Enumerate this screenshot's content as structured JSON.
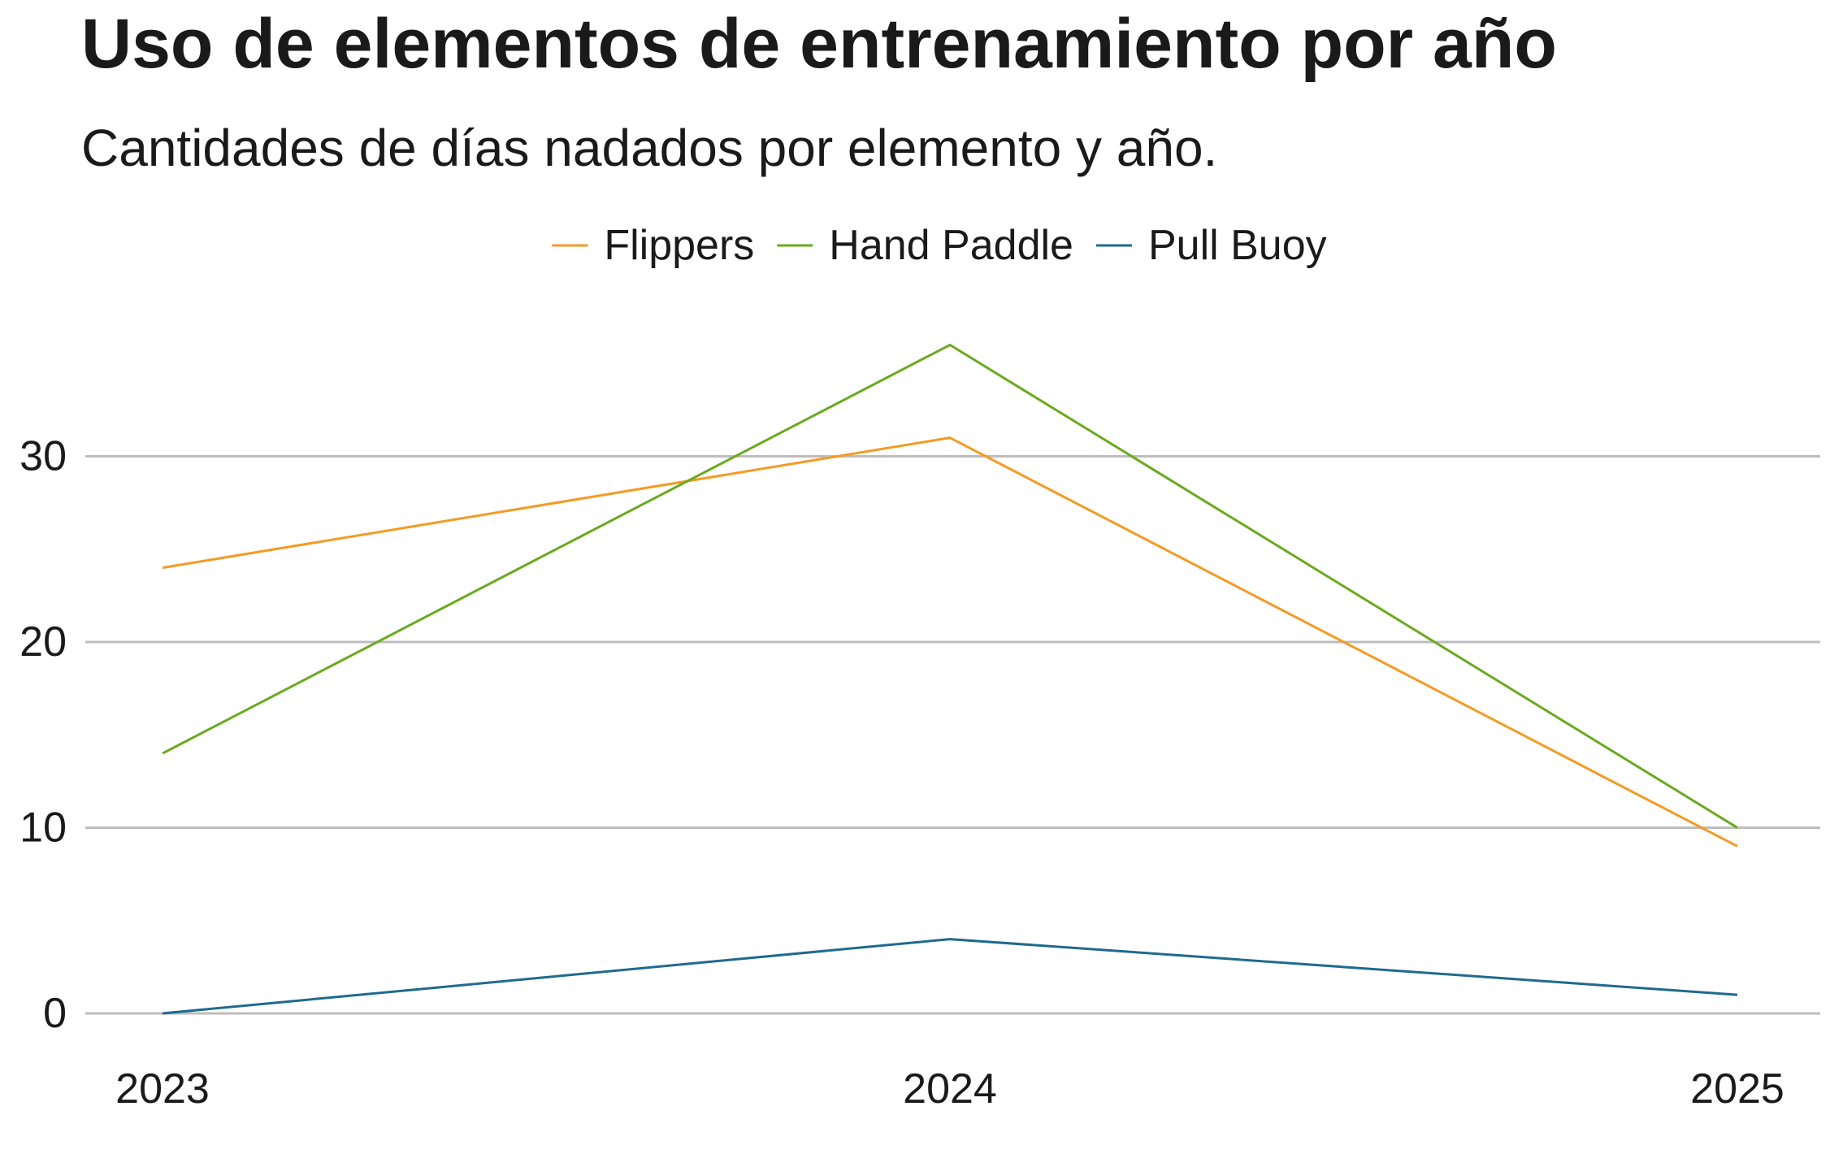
{
  "chart_data": {
    "type": "line",
    "title": "Uso de elementos de entrenamiento por año",
    "subtitle": "Cantidades de días nadados por elemento y año.",
    "xlabel": "",
    "ylabel": "",
    "x": [
      "2023",
      "2024",
      "2025"
    ],
    "y_ticks": [
      0,
      10,
      20,
      30
    ],
    "ylim": [
      0,
      36
    ],
    "grid": "horizontal",
    "legend_position": "top",
    "series": [
      {
        "name": "Flippers",
        "color": "#f59a23",
        "values": [
          24,
          31,
          9
        ]
      },
      {
        "name": "Hand Paddle",
        "color": "#6aaa1e",
        "values": [
          14,
          36,
          10
        ]
      },
      {
        "name": "Pull Buoy",
        "color": "#1f6a8f",
        "values": [
          0,
          4,
          1
        ]
      }
    ]
  }
}
